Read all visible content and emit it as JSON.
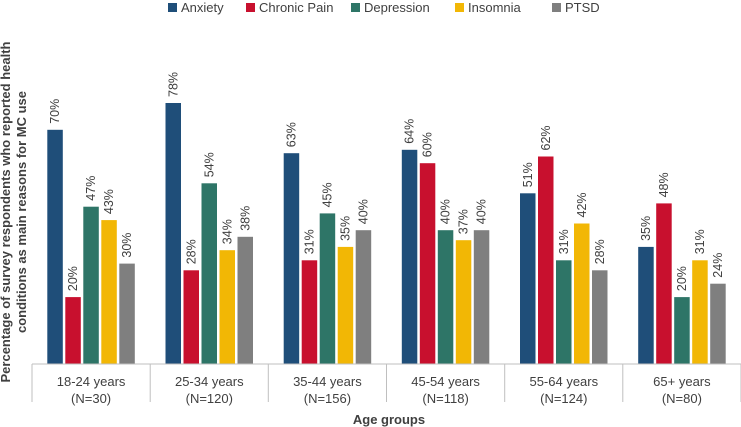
{
  "chart_data": {
    "type": "bar",
    "title": "",
    "xlabel": "Age groups",
    "ylabel_lines": [
      "Percentage of survey respondents who reported health",
      "conditions as main reasons for MC use"
    ],
    "ylim": [
      0,
      85
    ],
    "grid": false,
    "legend_position": "top",
    "categories": [
      {
        "name": "18-24 years",
        "n": "(N=30)"
      },
      {
        "name": "25-34 years",
        "n": "(N=120)"
      },
      {
        "name": "35-44 years",
        "n": "(N=156)"
      },
      {
        "name": "45-54 years",
        "n": "(N=118)"
      },
      {
        "name": "55-64 years",
        "n": "(N=124)"
      },
      {
        "name": "65+ years",
        "n": "(N=80)"
      }
    ],
    "series": [
      {
        "name": "Anxiety",
        "color": "#1f4e79",
        "values": [
          70,
          78,
          63,
          64,
          51,
          35
        ],
        "labels": [
          "70%",
          "78%",
          "63%",
          "64%",
          "51%",
          "35%"
        ]
      },
      {
        "name": "Chronic Pain",
        "color": "#c8102e",
        "values": [
          20,
          28,
          31,
          60,
          62,
          48
        ],
        "labels": [
          "20%",
          "28%",
          "31%",
          "60%",
          "62%",
          "48%"
        ]
      },
      {
        "name": "Depression",
        "color": "#2e7567",
        "values": [
          47,
          54,
          45,
          40,
          31,
          20
        ],
        "labels": [
          "47%",
          "54%",
          "45%",
          "40%",
          "31%",
          "20%"
        ]
      },
      {
        "name": "Insomnia",
        "color": "#f2b705",
        "values": [
          43,
          34,
          35,
          37,
          42,
          31
        ],
        "labels": [
          "43%",
          "34%",
          "35%",
          "37%",
          "42%",
          "31%"
        ]
      },
      {
        "name": "PTSD",
        "color": "#7f7f7f",
        "values": [
          30,
          38,
          40,
          40,
          28,
          24
        ],
        "labels": [
          "30%",
          "38%",
          "40%",
          "40%",
          "28%",
          "24%"
        ]
      }
    ]
  }
}
